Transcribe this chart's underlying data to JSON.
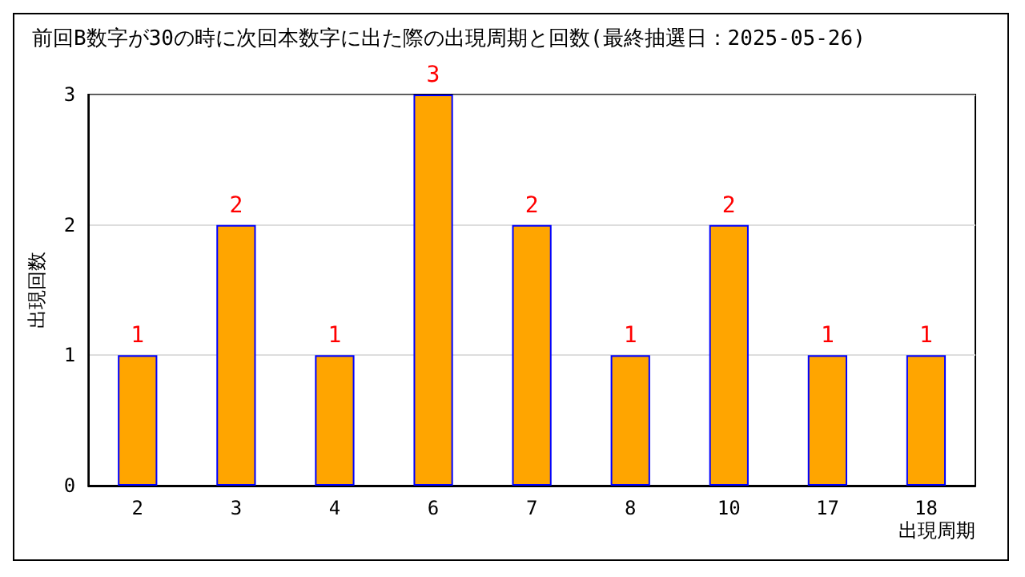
{
  "chart_data": {
    "type": "bar",
    "title": "前回B数字が30の時に次回本数字に出た際の出現周期と回数(最終抽選日：2025-05-26)",
    "xlabel": "出現周期",
    "ylabel": "出現回数",
    "categories": [
      "2",
      "3",
      "4",
      "6",
      "7",
      "8",
      "10",
      "17",
      "18"
    ],
    "values": [
      1,
      2,
      1,
      3,
      2,
      1,
      2,
      1,
      1
    ],
    "color": "#ffa500",
    "ylim": [
      0,
      3
    ],
    "yticks": [
      0,
      1,
      2,
      3
    ],
    "grid": "y",
    "data_labels": true
  }
}
